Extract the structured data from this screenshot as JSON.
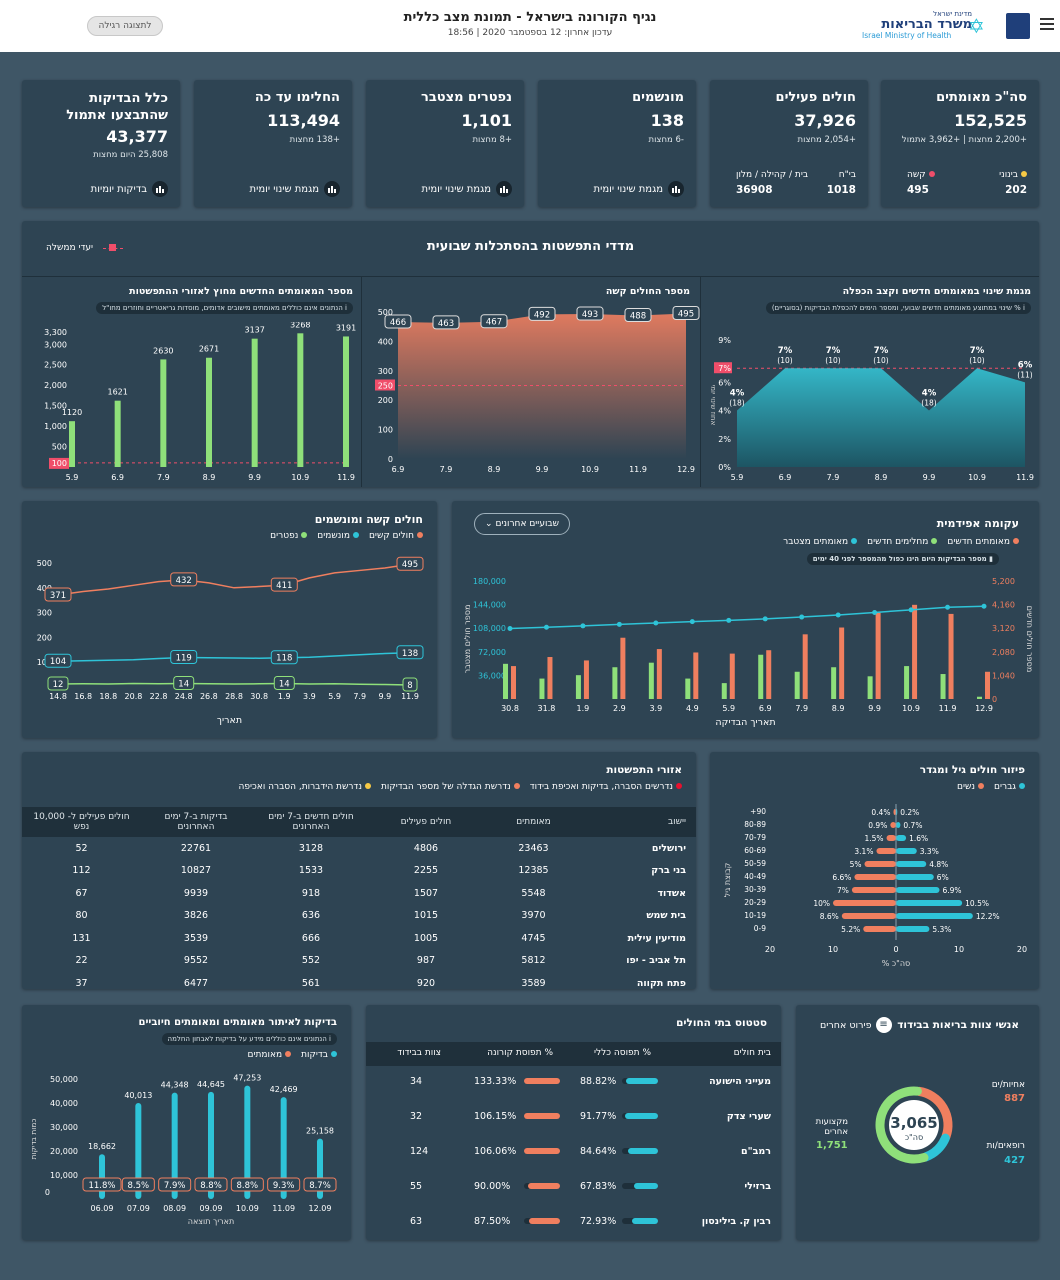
{
  "header": {
    "title": "נגיף הקורונה בישראל - תמונת מצב כללית",
    "updated": "עדכון אחרון: 12 בספטמבר 2020 | 18:56",
    "normal_view_button": "לתצוגה רגילה",
    "logo_small": "מדינת ישראל",
    "logo_he": "משרד הבריאות",
    "logo_en": "Israel Ministry of Health"
  },
  "kpis": [
    {
      "title": "סה\"כ מאומתים",
      "value": "152,525",
      "sub": "+2,200 מחצות | +3,962 אתמול",
      "extra": {
        "a_label": "בינוני",
        "a_val": "202",
        "b_label": "קשה",
        "b_val": "495"
      }
    },
    {
      "title": "חולים פעילים",
      "value": "37,926",
      "sub": "+2,054 מחצות",
      "extra": {
        "a_label": "בי\"ח",
        "a_val": "1018",
        "b_label": "בית / קהילה / מלון",
        "b_val": "36908"
      }
    },
    {
      "title": "מונשמים",
      "value": "138",
      "sub": "-6 מחצות",
      "link": "מגמת שינוי יומית"
    },
    {
      "title": "נפטרים מצטבר",
      "value": "1,101",
      "sub": "+8 מחצות",
      "link": "מגמת שינוי יומית"
    },
    {
      "title": "החלימו עד כה",
      "value": "113,494",
      "sub": "+138 מחצות",
      "link": "מגמת שינוי יומית"
    },
    {
      "title": "כלל הבדיקות שהתבצעו אתמול",
      "value": "43,377",
      "sub": "25,808 היום מחצות",
      "link": "בדיקות יומיות"
    }
  ],
  "weekly": {
    "title": "מדדי התפשטות בהסתכלות שבועית",
    "legend": "יעדי ממשלה",
    "p1": {
      "title": "מגמת שינוי במאומתים חדשים וקצב הכפלה",
      "note": "% שינוי במתוצע מאומתים חדשים שבועי, ומספר הימים להכפלת הבדיקות (בסוגריים)",
      "ylabel": "אחוז שינוי יומי",
      "chart_data": {
        "type": "area",
        "x": [
          "5.9",
          "6.9",
          "7.9",
          "8.9",
          "9.9",
          "10.9",
          "11.9"
        ],
        "values": [
          4,
          7,
          7,
          7,
          4,
          7,
          6
        ],
        "labels": [
          "4%",
          "7%",
          "7%",
          "7%",
          "4%",
          "7%",
          "6%"
        ],
        "sub": [
          "(18)",
          "(10)",
          "(10)",
          "(10)",
          "(18)",
          "(10)",
          "(11)"
        ],
        "yticks": [
          "0%",
          "2%",
          "4%",
          "6%",
          "7%",
          "9%"
        ],
        "ylim": [
          0,
          9
        ],
        "target": "7%"
      }
    },
    "p2": {
      "title": "מספר החולים קשה",
      "chart_data": {
        "type": "area",
        "x": [
          "6.9",
          "7.9",
          "8.9",
          "9.9",
          "10.9",
          "11.9",
          "12.9"
        ],
        "values": [
          466,
          463,
          467,
          492,
          493,
          488,
          495
        ],
        "yticks": [
          "0",
          "100",
          "200",
          "250",
          "300",
          "400",
          "500"
        ],
        "ylim": [
          0,
          500
        ],
        "target": "250"
      }
    },
    "p3": {
      "title": "מספר המאומתים החדשים מחוץ לאזורי ההתפשטות",
      "note": "הנתונים אינם כוללים מאומתים מישובים אדומים, מוסדות גריאטריים וחוזרים מחו\"ל",
      "chart_data": {
        "type": "bar",
        "x": [
          "5.9",
          "6.9",
          "7.9",
          "8.9",
          "9.9",
          "10.9",
          "11.9"
        ],
        "values": [
          1120,
          1621,
          2630,
          2671,
          3137,
          3268,
          3191
        ],
        "yticks": [
          "100",
          "500",
          "1,000",
          "1,500",
          "2,000",
          "2,500",
          "3,000",
          "3,300"
        ],
        "ylim": [
          0,
          3300
        ],
        "target": "100"
      }
    }
  },
  "epi": {
    "title": "עקומה אפידמית",
    "dropdown": "שבועיים אחרונים",
    "legend": [
      "מאומתים חדשים",
      "מחלימים חדשים",
      "מאומתים מצטבר"
    ],
    "note": "מספר הבדיקות היום הינו כפול מהמספר לפני 40 ימים",
    "ylabel_left": "מספר חולים מצטבר",
    "ylabel_right": "מספר חולים חדשים",
    "xlabel": "תאריך הבדיקה",
    "chart_data": {
      "type": "bar",
      "x": [
        "30.8",
        "31.8",
        "1.9",
        "2.9",
        "3.9",
        "4.9",
        "5.9",
        "6.9",
        "7.9",
        "8.9",
        "9.9",
        "10.9",
        "11.9",
        "12.9"
      ],
      "new_cases": [
        1450,
        1850,
        1700,
        2700,
        2200,
        2050,
        2000,
        2150,
        2850,
        3150,
        3800,
        4150,
        3750,
        1200
      ],
      "recovered": [
        1550,
        900,
        1050,
        1400,
        1600,
        900,
        700,
        1950,
        1200,
        1400,
        1000,
        1450,
        1100,
        100
      ],
      "cumulative": [
        107500,
        109500,
        111500,
        113800,
        116000,
        118000,
        120000,
        122200,
        125000,
        128200,
        132000,
        136000,
        140000,
        141500
      ],
      "yticks_left": [
        "36,000",
        "72,000",
        "108,000",
        "144,000",
        "180,000"
      ],
      "yticks_right": [
        "0",
        "1,040",
        "2,080",
        "3,120",
        "4,160",
        "5,200"
      ]
    }
  },
  "severe": {
    "title": "חולים קשה ומונשמים",
    "legend": [
      "חולים קשים",
      "מונשמים",
      "נפטרים"
    ],
    "xlabel": "תאריך",
    "chart_data": {
      "type": "line",
      "x": [
        "14.8",
        "16.8",
        "18.8",
        "20.8",
        "22.8",
        "24.8",
        "26.8",
        "28.8",
        "30.8",
        "1.9",
        "3.9",
        "5.9",
        "7.9",
        "9.9",
        "11.9"
      ],
      "yticks": [
        "100",
        "200",
        "300",
        "400",
        "500"
      ],
      "severe": [
        371,
        385,
        395,
        410,
        425,
        432,
        420,
        400,
        405,
        411,
        440,
        460,
        470,
        480,
        495
      ],
      "ventilated": [
        104,
        106,
        108,
        110,
        115,
        119,
        118,
        117,
        116,
        118,
        120,
        125,
        130,
        135,
        138
      ],
      "deaths": [
        12,
        13,
        12,
        14,
        13,
        14,
        13,
        12,
        13,
        14,
        12,
        13,
        11,
        10,
        8
      ],
      "labels": {
        "severe": [
          [
            "371",
            0
          ],
          [
            "432",
            5
          ],
          [
            "411",
            9
          ],
          [
            "495",
            14
          ]
        ],
        "ventilated": [
          [
            "104",
            0
          ],
          [
            "119",
            5
          ],
          [
            "118",
            9
          ],
          [
            "138",
            14
          ]
        ],
        "deaths": [
          [
            "12",
            0
          ],
          [
            "14",
            5
          ],
          [
            "14",
            9
          ],
          [
            "8",
            14
          ]
        ]
      }
    }
  },
  "areas": {
    "title": "אזורי התפשטות",
    "legend": [
      "נדרשים הסברה, בדיקות ואכיפת בידוד",
      "נדרשת הגדלה של מספר הבדיקות",
      "נדרשת הידברות, הסברה ואכיפה"
    ],
    "columns": [
      "יישוב",
      "מאומתים",
      "חולים פעילים",
      "חולים חדשים ב-7 ימים האחרונים",
      "בדיקות ב-7 ימים האחרונים",
      "חולים פעילים ל- 10,000 נפש"
    ],
    "rows": [
      [
        "ירושלים",
        "23463",
        "4806",
        "3128",
        "22761",
        "52"
      ],
      [
        "בני ברק",
        "12385",
        "2255",
        "1533",
        "10827",
        "112"
      ],
      [
        "אשדוד",
        "5548",
        "1507",
        "918",
        "9939",
        "67"
      ],
      [
        "בית שמש",
        "3970",
        "1015",
        "636",
        "3826",
        "80"
      ],
      [
        "מודיעין עילית",
        "4745",
        "1005",
        "666",
        "3539",
        "131"
      ],
      [
        "תל אביב - יפו",
        "5812",
        "987",
        "552",
        "9552",
        "22"
      ],
      [
        "פתח תקווה",
        "3589",
        "920",
        "561",
        "6477",
        "37"
      ]
    ]
  },
  "age": {
    "title": "פיזור חולים גיל ומגדר",
    "legend": [
      "גברים",
      "נשים"
    ],
    "ylabel": "קבוצת גיל",
    "xlabel": "% סה\"כ",
    "xticks": [
      "20",
      "10",
      "0",
      "10",
      "20"
    ],
    "chart_data": {
      "type": "bar",
      "categories": [
        "+90",
        "80-89",
        "70-79",
        "60-69",
        "50-59",
        "40-49",
        "30-39",
        "20-29",
        "10-19",
        "0-9"
      ],
      "women": [
        0.4,
        0.9,
        1.5,
        3.1,
        5,
        6.6,
        7,
        10,
        8.6,
        5.2
      ],
      "men": [
        0.2,
        0.7,
        1.6,
        3.3,
        4.8,
        6,
        6.9,
        10.5,
        12.2,
        5.3
      ],
      "women_labels": [
        "0.4%",
        "0.9%",
        "1.5%",
        "3.1%",
        "5%",
        "6.6%",
        "7%",
        "10%",
        "8.6%",
        "5.2%"
      ],
      "men_labels": [
        "0.2%",
        "0.7%",
        "1.6%",
        "3.3%",
        "4.8%",
        "6%",
        "6.9%",
        "10.5%",
        "12.2%",
        "5.3%"
      ]
    }
  },
  "staff": {
    "title": "אנשי צוות בריאות בבידוד",
    "breakdown": "פירוט אחרים",
    "total": "3,065",
    "total_label": "סה\"כ",
    "nurses_label": "אחיות/ים",
    "nurses": "887",
    "doctors_label": "רופאים/ות",
    "doctors": "427",
    "others_label": "מקצועות אחרים",
    "others": "1,751",
    "colors": {
      "nurses": "#f07f5f",
      "doctors": "#2ec4d8",
      "others": "#8fe07a"
    }
  },
  "hospitals": {
    "title": "סטטוס בתי החולים",
    "columns": [
      "בית חולים",
      "% תפוסה כללי",
      "% תפוסת קורונה",
      "צוות בבידוד"
    ],
    "rows": [
      {
        "name": "מעייני הישועה",
        "general": "88.82%",
        "g": 88.82,
        "corona": "133.33%",
        "c": 100,
        "staff": "34"
      },
      {
        "name": "שערי צדק",
        "general": "91.77%",
        "g": 91.77,
        "corona": "106.15%",
        "c": 100,
        "staff": "32"
      },
      {
        "name": "רמב\"ם",
        "general": "84.64%",
        "g": 84.64,
        "corona": "106.06%",
        "c": 100,
        "staff": "124"
      },
      {
        "name": "ברזילי",
        "general": "67.83%",
        "g": 67.83,
        "corona": "90.00%",
        "c": 90,
        "staff": "55"
      },
      {
        "name": "רבין ק. בילינסון",
        "general": "72.93%",
        "g": 72.93,
        "corona": "87.50%",
        "c": 87.5,
        "staff": "63"
      }
    ]
  },
  "tests": {
    "title": "בדיקות לאיתור מאומתים ומאומתים חיוביים",
    "note": "הנתונים אינם כוללים מידע על בדיקות לאבחון החלמה",
    "legend": [
      "בדיקות",
      "מאומתים"
    ],
    "ylabel": "כמות בדיקות",
    "xlabel": "תאריך תוצאה",
    "chart_data": {
      "type": "bar",
      "x": [
        "06.09",
        "07.09",
        "08.09",
        "09.09",
        "10.09",
        "11.09",
        "12.09"
      ],
      "values": [
        18662,
        40013,
        44348,
        44645,
        47253,
        42469,
        25158
      ],
      "labels": [
        "18,662",
        "40,013",
        "44,348",
        "44,645",
        "47,253",
        "42,469",
        "25,158"
      ],
      "pct": [
        "11.8%",
        "8.5%",
        "7.9%",
        "8.8%",
        "8.8%",
        "9.3%",
        "8.7%"
      ],
      "yticks": [
        "10,000",
        "20,000",
        "30,000",
        "40,000",
        "50,000"
      ],
      "ylim": [
        0,
        50000
      ]
    }
  }
}
